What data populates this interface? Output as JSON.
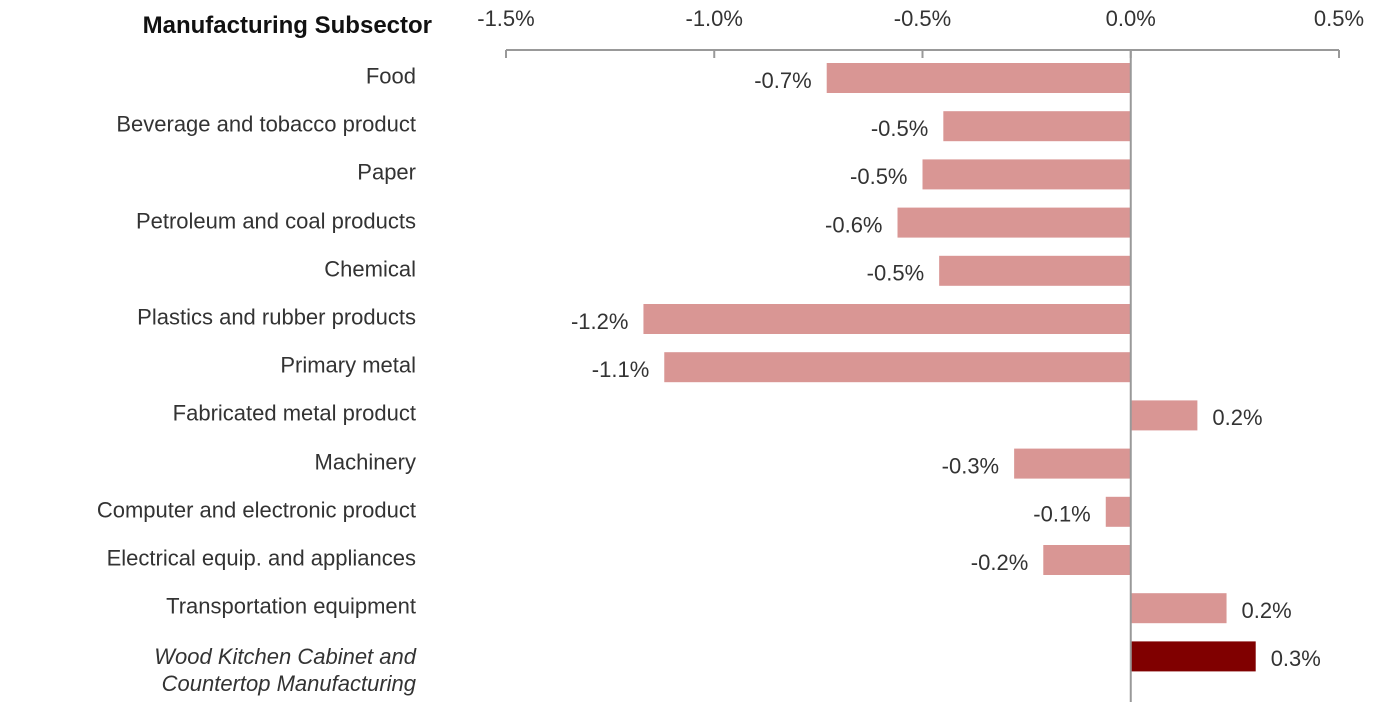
{
  "chart_data": {
    "type": "barh",
    "title": "Manufacturing Subsector",
    "categories": [
      "Food",
      "Beverage and tobacco product",
      "Paper",
      "Petroleum and coal products",
      "Chemical",
      "Plastics and rubber products",
      "Primary metal",
      "Fabricated metal product",
      "Machinery",
      "Computer and electronic product",
      "Electrical equip. and appliances",
      "Transportation equipment",
      "Wood Kitchen Cabinet and Countertop Manufacturing"
    ],
    "values": [
      -0.73,
      -0.45,
      -0.5,
      -0.56,
      -0.46,
      -1.17,
      -1.12,
      0.16,
      -0.28,
      -0.06,
      -0.21,
      0.23,
      0.3
    ],
    "value_labels": [
      "-0.7%",
      "-0.5%",
      "-0.5%",
      "-0.6%",
      "-0.5%",
      "-1.2%",
      "-1.1%",
      "0.2%",
      "-0.3%",
      "-0.1%",
      "-0.2%",
      "0.2%",
      "0.3%"
    ],
    "colors": [
      "#d99694",
      "#d99694",
      "#d99694",
      "#d99694",
      "#d99694",
      "#d99694",
      "#d99694",
      "#d99694",
      "#d99694",
      "#d99694",
      "#d99694",
      "#d99694",
      "#800000"
    ],
    "highlight_index": 12,
    "xlim": [
      -1.5,
      0.5
    ],
    "xticks": [
      {
        "value": -1.5,
        "label": "-1.5%"
      },
      {
        "value": -1.0,
        "label": "-1.0%"
      },
      {
        "value": -0.5,
        "label": "-0.5%"
      },
      {
        "value": 0.0,
        "label": "0.0%"
      },
      {
        "value": 0.5,
        "label": "0.5%"
      }
    ],
    "grid": false
  }
}
